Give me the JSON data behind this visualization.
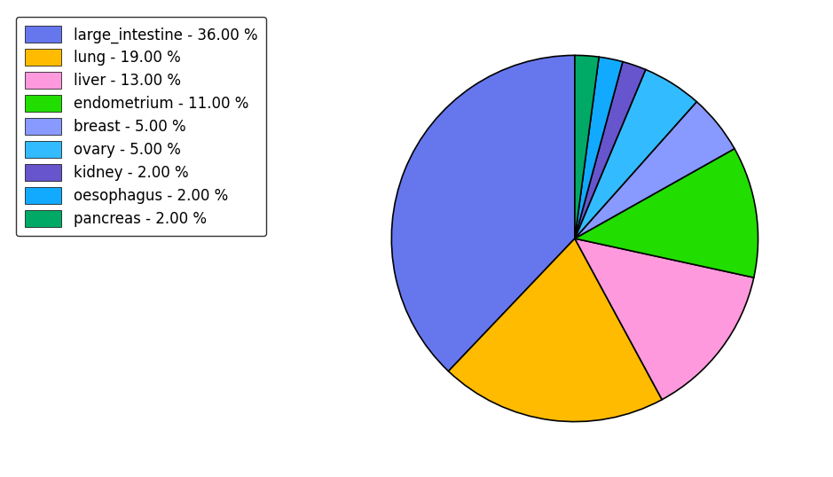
{
  "labels": [
    "large_intestine",
    "lung",
    "liver",
    "endometrium",
    "breast",
    "ovary",
    "kidney",
    "oesophagus",
    "pancreas"
  ],
  "values": [
    36,
    19,
    13,
    11,
    5,
    5,
    2,
    2,
    2
  ],
  "colors": [
    "#6677ee",
    "#ffbb00",
    "#ff99dd",
    "#22dd00",
    "#8899ff",
    "#33bbff",
    "#6655cc",
    "#11aaff",
    "#00aa66"
  ],
  "legend_labels": [
    "large_intestine - 36.00 %",
    "lung - 19.00 %",
    "liver - 13.00 %",
    "endometrium - 11.00 %",
    "breast - 5.00 %",
    "ovary - 5.00 %",
    "kidney - 2.00 %",
    "oesophagus - 2.00 %",
    "pancreas - 2.00 %"
  ],
  "startangle": 90,
  "figsize": [
    9.39,
    5.38
  ],
  "dpi": 100,
  "legend_fontsize": 12
}
